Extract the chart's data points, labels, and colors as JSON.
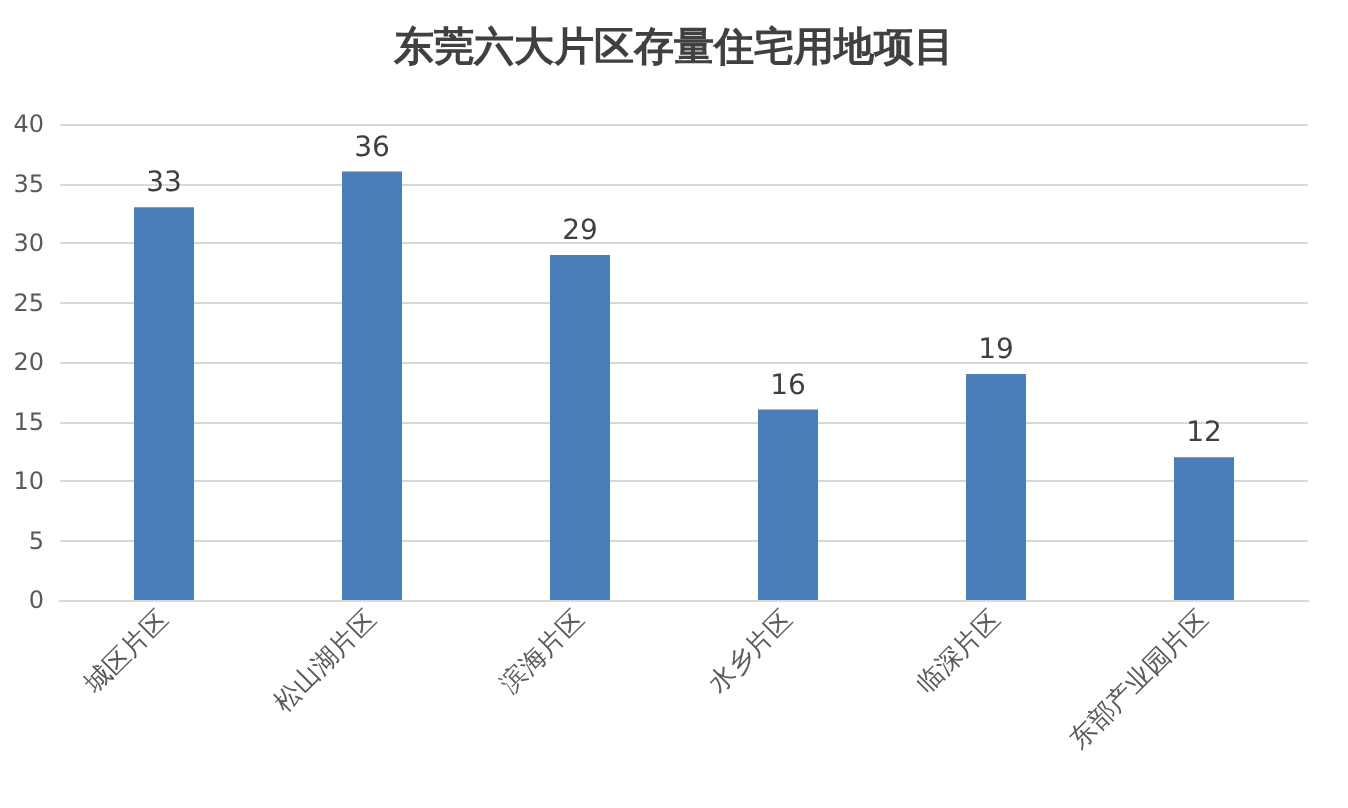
{
  "chart_data": {
    "type": "bar",
    "title": "东莞六大片区存量住宅用地项目",
    "categories": [
      "城区片区",
      "松山湖片区",
      "滨海片区",
      "水乡片区",
      "临深片区",
      "东部产业园片区"
    ],
    "values": [
      33,
      36,
      29,
      16,
      19,
      12
    ],
    "color": "#4a7ebb",
    "ylim": [
      0,
      40
    ],
    "yticks": [
      0,
      5,
      10,
      15,
      20,
      25,
      30,
      35,
      40
    ],
    "grid": "y",
    "data_labels": true
  }
}
